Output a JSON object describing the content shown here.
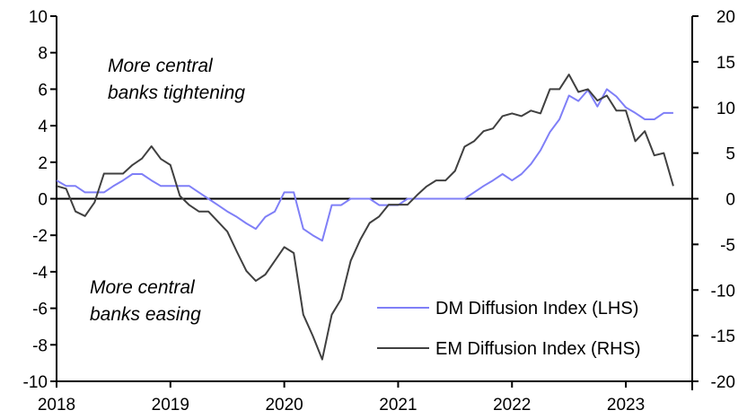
{
  "chart_data": {
    "type": "line",
    "title": "",
    "x_start": "2018-01",
    "frequency": "monthly",
    "xlim_years": [
      2018,
      2023.583
    ],
    "x_tick_labels": [
      "2018",
      "2019",
      "2020",
      "2021",
      "2022",
      "2023"
    ],
    "left_axis": {
      "ylim": [
        -10,
        10
      ],
      "ticks": [
        10,
        8,
        6,
        4,
        2,
        0,
        -2,
        -4,
        -6,
        -8,
        -10
      ]
    },
    "right_axis": {
      "ylim": [
        -20,
        20
      ],
      "ticks": [
        20,
        15,
        10,
        5,
        0,
        -5,
        -10,
        -15,
        -20
      ]
    },
    "series": [
      {
        "name": "DM Diffusion Index (LHS)",
        "axis": "left",
        "color": "#7f7ff7",
        "values": [
          1.0,
          0.7,
          0.7,
          0.35,
          0.35,
          0.35,
          0.7,
          1.0,
          1.35,
          1.35,
          1.0,
          0.7,
          0.7,
          0.7,
          0.7,
          0.35,
          0,
          -0.35,
          -0.7,
          -1.0,
          -1.35,
          -1.65,
          -1.0,
          -0.7,
          0.35,
          0.35,
          -1.65,
          -2.0,
          -2.3,
          -0.35,
          -0.35,
          0,
          0,
          0,
          -0.35,
          -0.35,
          -0.35,
          0,
          0,
          0,
          0,
          0,
          0,
          0,
          0.35,
          0.7,
          1.0,
          1.35,
          1.0,
          1.35,
          1.9,
          2.65,
          3.65,
          4.35,
          5.65,
          5.35,
          5.95,
          5.05,
          6.0,
          5.6,
          5.0,
          4.7,
          4.35,
          4.35,
          4.7,
          4.7
        ]
      },
      {
        "name": "EM Diffusion Index (RHS)",
        "axis": "right",
        "color": "#404040",
        "values": [
          1.4,
          1.1,
          -1.4,
          -1.9,
          -0.4,
          2.75,
          2.75,
          2.75,
          3.7,
          4.4,
          5.75,
          4.35,
          3.7,
          0.3,
          -0.7,
          -1.4,
          -1.4,
          -2.5,
          -3.6,
          -5.8,
          -7.9,
          -9.0,
          -8.3,
          -6.8,
          -5.3,
          -5.95,
          -12.7,
          -15.0,
          -17.6,
          -12.7,
          -11.0,
          -6.8,
          -4.5,
          -2.65,
          -1.95,
          -0.65,
          -0.65,
          -0.65,
          0.4,
          1.35,
          2.0,
          2.0,
          3.05,
          5.7,
          6.3,
          7.4,
          7.7,
          9.05,
          9.35,
          9.05,
          9.65,
          9.35,
          12.0,
          12.0,
          13.6,
          11.7,
          12.0,
          10.75,
          11.3,
          9.65,
          9.65,
          6.3,
          7.4,
          4.75,
          5.0,
          1.4
        ]
      }
    ],
    "annotations": {
      "top_line1": "More central",
      "top_line2": "banks tightening",
      "bottom_line1": "More central",
      "bottom_line2": "banks easing"
    },
    "legend_placement": "bottom-right",
    "grid": false
  }
}
